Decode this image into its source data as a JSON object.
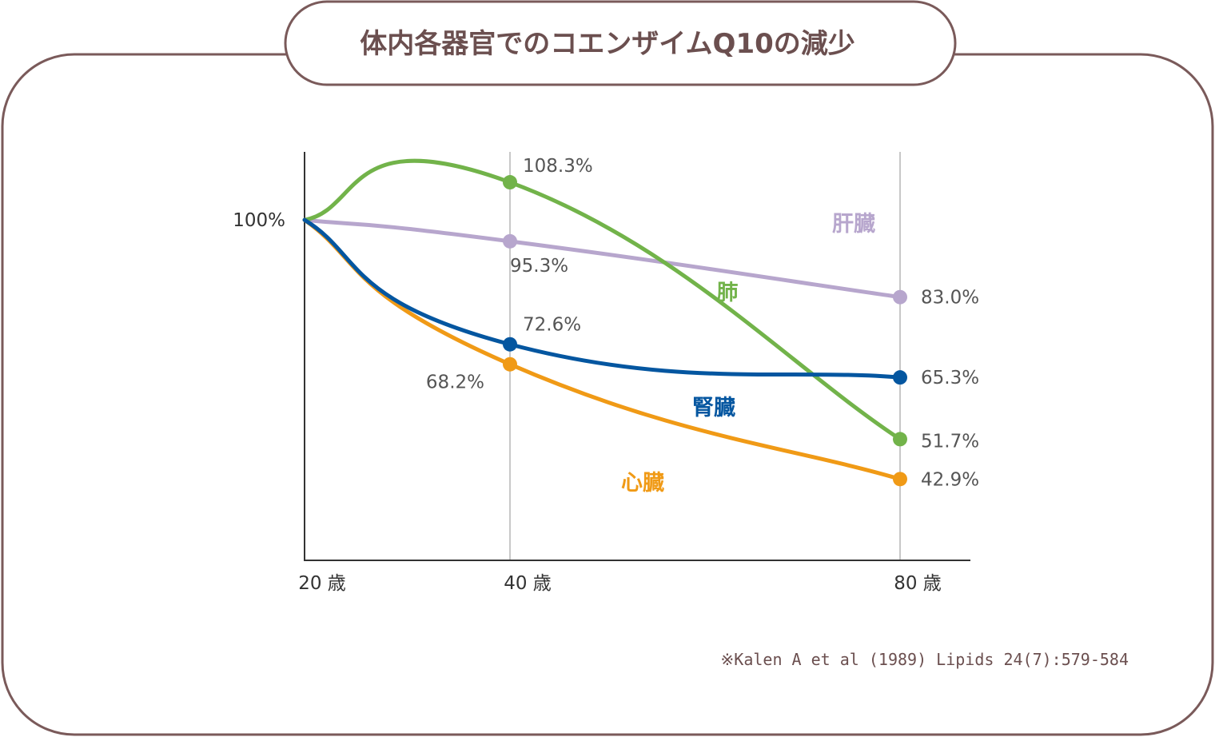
{
  "title": "体内各器官でのコエンザイムQ10の減少",
  "source": "※Kalen A et al (1989) Lipids 24(7):579-584",
  "colors": {
    "frame": "#7a5a5a",
    "title_text": "#6b4f4f",
    "axis": "#333333",
    "gridline": "#c8c8c8",
    "text": "#555555",
    "source_text": "#6b4f4f"
  },
  "chart_data": {
    "type": "line",
    "title": "体内各器官でのコエンザイムQ10の減少",
    "x": [
      20,
      40,
      80
    ],
    "x_tick_labels": [
      "20 歳",
      "40 歳",
      "80 歳"
    ],
    "y_tick_labels": [
      "100%"
    ],
    "y_ticks": [
      100
    ],
    "xlim": [
      20,
      85
    ],
    "ylim": [
      25,
      115
    ],
    "grid": "vertical lines at 40 and 80",
    "series": [
      {
        "name": "肝臓",
        "color": "#b7a6cd",
        "values": [
          100,
          95.3,
          83.0
        ],
        "point_labels": [
          "",
          "95.3%",
          "83.0%"
        ]
      },
      {
        "name": "肺",
        "color": "#72b34a",
        "values": [
          100,
          108.3,
          51.7
        ],
        "point_labels": [
          "",
          "108.3%",
          "51.7%"
        ]
      },
      {
        "name": "腎臓",
        "color": "#0456a0",
        "values": [
          100,
          72.6,
          65.3
        ],
        "point_labels": [
          "",
          "72.6%",
          "65.3%"
        ]
      },
      {
        "name": "心臓",
        "color": "#f09a16",
        "values": [
          100,
          68.2,
          42.9
        ],
        "point_labels": [
          "",
          "68.2%",
          "42.9%"
        ]
      }
    ]
  }
}
